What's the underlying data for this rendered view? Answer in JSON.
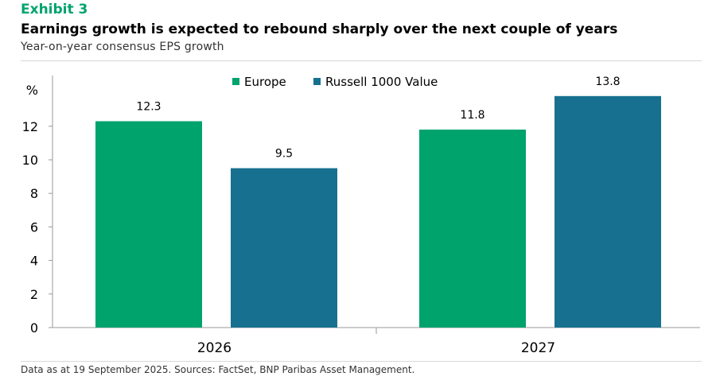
{
  "header": {
    "exhibit": "Exhibit 3",
    "title": "Earnings growth is expected to rebound sharply over the next couple of years",
    "subtitle": "Year-on-year consensus EPS growth"
  },
  "footnote": "Data as at 19 September 2025. Sources: FactSet, BNP Paribas Asset Management.",
  "colors": {
    "europe": "#00A36C",
    "russell": "#17708F",
    "accent": "#00A36C"
  },
  "chart_data": {
    "type": "bar",
    "categories": [
      "2026",
      "2027"
    ],
    "series": [
      {
        "name": "Europe",
        "values": [
          12.3,
          11.8
        ],
        "color": "#00A36C"
      },
      {
        "name": "Russell 1000 Value",
        "values": [
          9.5,
          13.8
        ],
        "color": "#17708F"
      }
    ],
    "data_labels": [
      [
        "12.3",
        "11.8"
      ],
      [
        "9.5",
        "13.8"
      ]
    ],
    "ylabel": "%",
    "ylim": [
      0,
      14
    ],
    "yticks": [
      0,
      2,
      4,
      6,
      8,
      10,
      12
    ],
    "legend": "top-center",
    "grid": false
  }
}
